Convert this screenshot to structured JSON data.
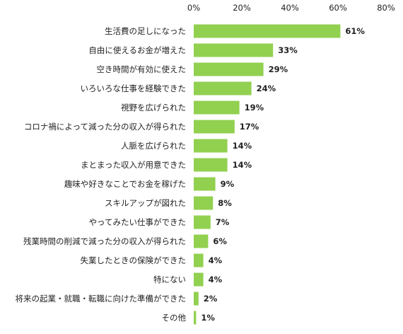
{
  "chart_data": {
    "type": "bar",
    "orientation": "horizontal",
    "title": "",
    "xlabel": "",
    "ylabel": "",
    "xlim": [
      0,
      80
    ],
    "x_ticks": [
      "0%",
      "20%",
      "40%",
      "60%",
      "80%"
    ],
    "x_tick_values": [
      0,
      20,
      40,
      60,
      80
    ],
    "grid": false,
    "bar_color": "#92d050",
    "categories": [
      "生活費の足しになった",
      "自由に使えるお金が増えた",
      "空き時間が有効に使えた",
      "いろいろな仕事を経験できた",
      "視野を広げられた",
      "コロナ禍によって減った分の収入が得られた",
      "人脈を広げられた",
      "まとまった収入が用意できた",
      "趣味や好きなことでお金を稼げた",
      "スキルアップが図れた",
      "やってみたい仕事ができた",
      "残業時間の削減で減った分の収入が得られた",
      "失業したときの保険ができた",
      "特にない",
      "将来の起業・就職・転職に向けた準備ができた",
      "その他"
    ],
    "values": [
      61,
      33,
      29,
      24,
      19,
      17,
      14,
      14,
      9,
      8,
      7,
      6,
      4,
      4,
      2,
      1
    ],
    "value_labels": [
      "61%",
      "33%",
      "29%",
      "24%",
      "19%",
      "17%",
      "14%",
      "14%",
      "9%",
      "8%",
      "7%",
      "6%",
      "4%",
      "4%",
      "2%",
      "1%"
    ]
  }
}
